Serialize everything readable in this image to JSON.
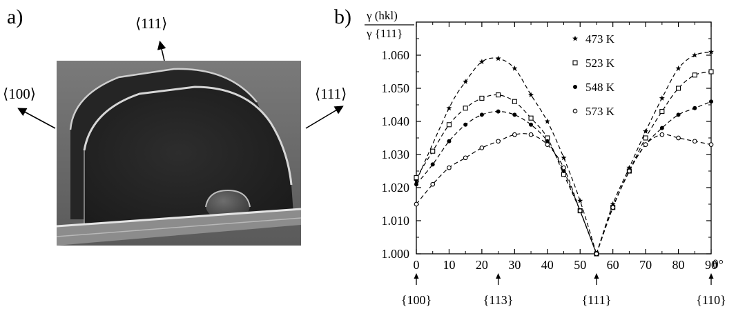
{
  "panel_a": {
    "label": "a)",
    "dir_top": "⟨111⟩",
    "dir_left": "⟨100⟩",
    "dir_right": "⟨111⟩"
  },
  "panel_b": {
    "label": "b)"
  },
  "chart_data": {
    "type": "line",
    "ylabel_numerator": "γ (hkl)",
    "ylabel_denominator": "γ {111}",
    "xlabel": "θ°",
    "xlim": [
      0,
      90
    ],
    "ylim": [
      1.0,
      1.07
    ],
    "xticks": [
      0,
      10,
      20,
      30,
      40,
      50,
      60,
      70,
      80,
      90
    ],
    "yticks": [
      "1.000",
      "1.010",
      "1.020",
      "1.030",
      "1.040",
      "1.050",
      "1.060"
    ],
    "facets": [
      {
        "x": 0,
        "label": "{100}"
      },
      {
        "x": 25,
        "label": "{113}"
      },
      {
        "x": 55,
        "label": "{111}"
      },
      {
        "x": 90,
        "label": "{110}"
      }
    ],
    "legend_position": "top-right",
    "series": [
      {
        "name": "473 K",
        "marker": "star",
        "points": [
          [
            0,
            1.022
          ],
          [
            10,
            1.044
          ],
          [
            15,
            1.052
          ],
          [
            20,
            1.058
          ],
          [
            25,
            1.059
          ],
          [
            30,
            1.056
          ],
          [
            35,
            1.048
          ],
          [
            40,
            1.04
          ],
          [
            45,
            1.029
          ],
          [
            50,
            1.016
          ],
          [
            55,
            1.0
          ],
          [
            60,
            1.015
          ],
          [
            65,
            1.026
          ],
          [
            70,
            1.037
          ],
          [
            75,
            1.047
          ],
          [
            80,
            1.056
          ],
          [
            85,
            1.06
          ],
          [
            90,
            1.061
          ]
        ]
      },
      {
        "name": "523 K",
        "marker": "open-square",
        "points": [
          [
            0,
            1.023
          ],
          [
            5,
            1.031
          ],
          [
            10,
            1.039
          ],
          [
            15,
            1.044
          ],
          [
            20,
            1.047
          ],
          [
            25,
            1.048
          ],
          [
            30,
            1.046
          ],
          [
            35,
            1.041
          ],
          [
            40,
            1.035
          ],
          [
            45,
            1.024
          ],
          [
            50,
            1.013
          ],
          [
            55,
            1.0
          ],
          [
            60,
            1.014
          ],
          [
            65,
            1.025
          ],
          [
            70,
            1.035
          ],
          [
            75,
            1.043
          ],
          [
            80,
            1.05
          ],
          [
            85,
            1.054
          ],
          [
            90,
            1.055
          ]
        ]
      },
      {
        "name": "548 K",
        "marker": "filled-circle",
        "points": [
          [
            0,
            1.021
          ],
          [
            5,
            1.027
          ],
          [
            10,
            1.034
          ],
          [
            15,
            1.039
          ],
          [
            20,
            1.042
          ],
          [
            25,
            1.043
          ],
          [
            30,
            1.042
          ],
          [
            35,
            1.039
          ],
          [
            40,
            1.034
          ],
          [
            45,
            1.025
          ],
          [
            50,
            1.013
          ],
          [
            55,
            1.0
          ],
          [
            60,
            1.014
          ],
          [
            65,
            1.025
          ],
          [
            70,
            1.033
          ],
          [
            75,
            1.038
          ],
          [
            80,
            1.042
          ],
          [
            85,
            1.044
          ],
          [
            90,
            1.046
          ]
        ]
      },
      {
        "name": "573 K",
        "marker": "open-circle",
        "points": [
          [
            0,
            1.015
          ],
          [
            5,
            1.021
          ],
          [
            10,
            1.026
          ],
          [
            15,
            1.029
          ],
          [
            20,
            1.032
          ],
          [
            25,
            1.034
          ],
          [
            30,
            1.036
          ],
          [
            35,
            1.036
          ],
          [
            40,
            1.033
          ],
          [
            45,
            1.026
          ],
          [
            50,
            1.013
          ],
          [
            55,
            1.0
          ],
          [
            60,
            1.014
          ],
          [
            65,
            1.025
          ],
          [
            70,
            1.033
          ],
          [
            75,
            1.036
          ],
          [
            80,
            1.035
          ],
          [
            85,
            1.034
          ],
          [
            90,
            1.033
          ]
        ]
      }
    ]
  }
}
